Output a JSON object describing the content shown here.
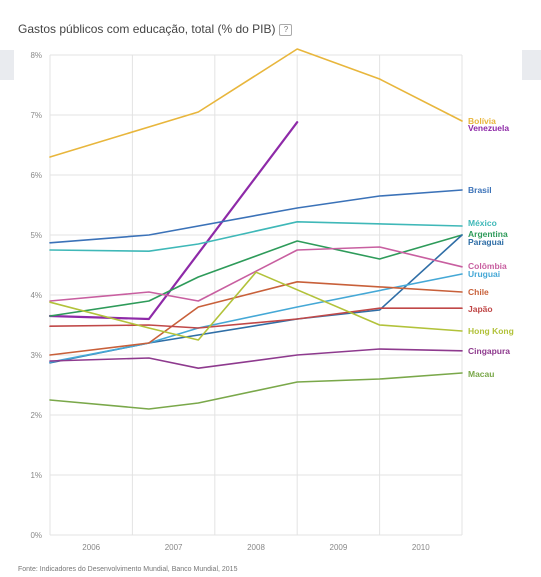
{
  "header": {
    "title": "Gastos públicos com educação, total (% do PIB)",
    "help_glyph": "?"
  },
  "footer": {
    "source": "Fonte: Indicadores do Desenvolvimento Mundial, Banco Mundial, 2015"
  },
  "chart_data": {
    "type": "line",
    "title": "Gastos públicos com educação, total (% do PIB)",
    "x": [
      "2006",
      "2007",
      "2008",
      "2009",
      "2010"
    ],
    "ylim": [
      0,
      8
    ],
    "yticks": [
      "0%",
      "1%",
      "2%",
      "3%",
      "4%",
      "5%",
      "6%",
      "7%",
      "8%"
    ],
    "grid": true,
    "legend": "right",
    "series": [
      {
        "name": "Bolívia",
        "color": "#e8b63c",
        "points": [
          [
            2005.5,
            6.3
          ],
          [
            2007.3,
            7.05
          ],
          [
            2008.5,
            8.1
          ],
          [
            2009.5,
            7.6
          ],
          [
            2010.5,
            6.9
          ]
        ]
      },
      {
        "name": "Venezuela",
        "color": "#8e2aa8",
        "points": [
          [
            2005.5,
            3.65
          ],
          [
            2006.7,
            3.6
          ],
          [
            2008.5,
            6.88
          ]
        ]
      },
      {
        "name": "Brasil",
        "color": "#3b72b8",
        "points": [
          [
            2005.5,
            4.87
          ],
          [
            2006.7,
            5.0
          ],
          [
            2008.5,
            5.45
          ],
          [
            2009.5,
            5.65
          ],
          [
            2010.5,
            5.75
          ]
        ]
      },
      {
        "name": "México",
        "color": "#3fb8b8",
        "points": [
          [
            2005.5,
            4.75
          ],
          [
            2006.7,
            4.73
          ],
          [
            2007.3,
            4.85
          ],
          [
            2008.5,
            5.22
          ],
          [
            2010.5,
            5.15
          ]
        ]
      },
      {
        "name": "Argentina",
        "color": "#2e9b5a",
        "points": [
          [
            2005.5,
            3.65
          ],
          [
            2006.7,
            3.9
          ],
          [
            2007.3,
            4.3
          ],
          [
            2008.5,
            4.9
          ],
          [
            2009.5,
            4.6
          ],
          [
            2010.5,
            5.0
          ]
        ]
      },
      {
        "name": "Paraguai",
        "color": "#2f6ea6",
        "points": [
          [
            2005.5,
            2.87
          ],
          [
            2006.7,
            3.2
          ],
          [
            2008.5,
            3.6
          ],
          [
            2009.5,
            3.75
          ],
          [
            2010.5,
            5.0
          ]
        ]
      },
      {
        "name": "Colômbia",
        "color": "#c85fa0",
        "points": [
          [
            2005.5,
            3.9
          ],
          [
            2006.7,
            4.05
          ],
          [
            2007.3,
            3.9
          ],
          [
            2008.5,
            4.75
          ],
          [
            2009.5,
            4.8
          ],
          [
            2010.5,
            4.47
          ]
        ]
      },
      {
        "name": "Uruguai",
        "color": "#45a8d6",
        "points": [
          [
            2005.5,
            2.88
          ],
          [
            2006.7,
            3.2
          ],
          [
            2007.3,
            3.45
          ],
          [
            2008.5,
            3.8
          ],
          [
            2010.5,
            4.35
          ]
        ]
      },
      {
        "name": "Chile",
        "color": "#c8603a",
        "points": [
          [
            2005.5,
            3.0
          ],
          [
            2006.7,
            3.2
          ],
          [
            2007.3,
            3.8
          ],
          [
            2008.5,
            4.22
          ],
          [
            2010.5,
            4.05
          ]
        ]
      },
      {
        "name": "Japão",
        "color": "#c04848",
        "points": [
          [
            2005.5,
            3.48
          ],
          [
            2006.7,
            3.5
          ],
          [
            2007.3,
            3.45
          ],
          [
            2008.5,
            3.6
          ],
          [
            2009.5,
            3.78
          ],
          [
            2010.5,
            3.78
          ]
        ]
      },
      {
        "name": "Hong Kong",
        "color": "#b2c23a",
        "points": [
          [
            2005.5,
            3.88
          ],
          [
            2006.7,
            3.45
          ],
          [
            2007.3,
            3.25
          ],
          [
            2008.0,
            4.38
          ],
          [
            2009.5,
            3.5
          ],
          [
            2010.5,
            3.4
          ]
        ]
      },
      {
        "name": "Cingapura",
        "color": "#8e3a8e",
        "points": [
          [
            2005.5,
            2.9
          ],
          [
            2006.7,
            2.95
          ],
          [
            2007.3,
            2.78
          ],
          [
            2008.5,
            3.0
          ],
          [
            2009.5,
            3.1
          ],
          [
            2010.5,
            3.07
          ]
        ]
      },
      {
        "name": "Macau",
        "color": "#7aa84a",
        "points": [
          [
            2005.5,
            2.25
          ],
          [
            2006.7,
            2.1
          ],
          [
            2007.3,
            2.2
          ],
          [
            2008.5,
            2.55
          ],
          [
            2009.5,
            2.6
          ],
          [
            2010.5,
            2.7
          ]
        ]
      }
    ],
    "legend_positions": [
      {
        "name": "Bolívia",
        "y": 6.9
      },
      {
        "name": "Venezuela",
        "y": 6.78
      },
      {
        "name": "Brasil",
        "y": 5.75
      },
      {
        "name": "México",
        "y": 5.2
      },
      {
        "name": "Argentina",
        "y": 5.02
      },
      {
        "name": "Paraguai",
        "y": 4.88
      },
      {
        "name": "Colômbia",
        "y": 4.48
      },
      {
        "name": "Uruguai",
        "y": 4.35
      },
      {
        "name": "Chile",
        "y": 4.05
      },
      {
        "name": "Japão",
        "y": 3.77
      },
      {
        "name": "Hong Kong",
        "y": 3.4
      },
      {
        "name": "Cingapura",
        "y": 3.07
      },
      {
        "name": "Macau",
        "y": 2.68
      }
    ]
  }
}
